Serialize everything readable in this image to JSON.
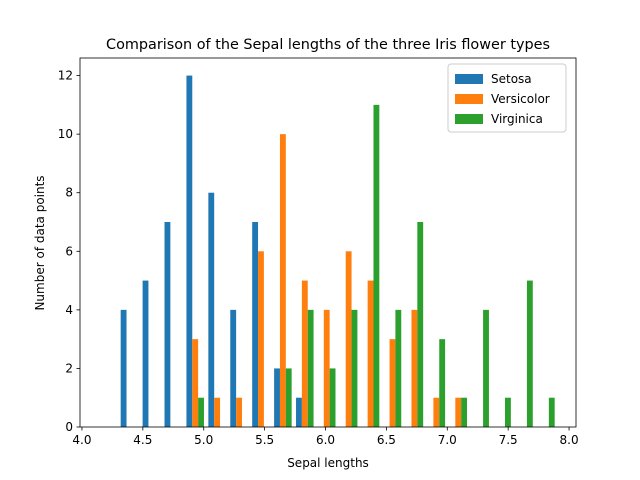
{
  "chart_data": {
    "type": "histogram",
    "title": "Comparison of the Sepal lengths of the three Iris flower types",
    "x_label": "Sepal lengths",
    "y_label": "Number of data points",
    "bins": [
      4.3,
      4.48,
      4.66,
      4.84,
      5.02,
      5.2,
      5.38,
      5.56,
      5.74,
      5.92,
      6.1,
      6.28,
      6.46,
      6.64,
      6.82,
      7.0,
      7.18,
      7.36,
      7.54,
      7.72,
      7.9
    ],
    "series": [
      {
        "name": "Setosa",
        "color": "#1f77b4",
        "values": [
          4,
          5,
          7,
          12,
          8,
          4,
          7,
          2,
          1,
          0,
          0,
          0,
          0,
          0,
          0,
          0,
          0,
          0,
          0,
          0
        ]
      },
      {
        "name": "Versicolor",
        "color": "#ff7f0e",
        "values": [
          0,
          0,
          0,
          3,
          1,
          1,
          6,
          10,
          5,
          4,
          6,
          5,
          3,
          4,
          1,
          1,
          0,
          0,
          0,
          0
        ]
      },
      {
        "name": "Virginica",
        "color": "#2ca02c",
        "values": [
          0,
          0,
          0,
          1,
          0,
          0,
          0,
          2,
          4,
          2,
          4,
          11,
          4,
          7,
          3,
          1,
          4,
          1,
          5,
          1
        ]
      }
    ],
    "xlim": [
      3.984,
      8.057
    ],
    "xticks": [
      {
        "value": 4.0,
        "label": "4.0"
      },
      4.5,
      {
        "value": 5.0,
        "label": "5.0"
      },
      5.5,
      {
        "value": 6.0,
        "label": "6.0"
      },
      6.5,
      {
        "value": 7.0,
        "label": "7.0"
      },
      7.5,
      {
        "value": 8.0,
        "label": "8.0"
      }
    ],
    "ylim": [
      0,
      12.6
    ],
    "yticks": [
      0,
      2,
      4,
      6,
      8,
      10,
      12
    ],
    "legend": "upper right"
  }
}
